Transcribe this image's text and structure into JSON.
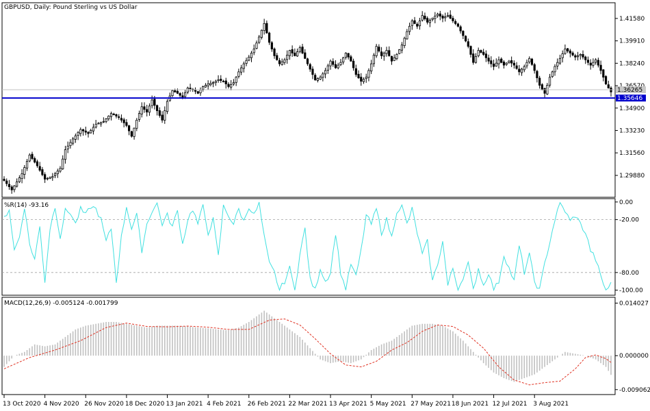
{
  "chart_data": {
    "type": "candlestick-with-indicators",
    "title": "GBPUSD, Daily:  Pound Sterling vs US Dollar",
    "colors": {
      "background": "#ffffff",
      "candle": "#000000",
      "hline": "#0000cc",
      "hline_label_bg": "#0000cc",
      "bid_line": "#c0c0c0",
      "wpr_line": "#40e0e0",
      "macd_hist": "#c0c0c0",
      "macd_signal": "#e03020"
    },
    "x_dates": [
      "13 Oct 2020",
      "4 Nov 2020",
      "26 Nov 2020",
      "18 Dec 2020",
      "13 Jan 2021",
      "4 Feb 2021",
      "26 Feb 2021",
      "22 Mar 2021",
      "13 Apr 2021",
      "5 May 2021",
      "27 May 2021",
      "18 Jun 2021",
      "12 Jul 2021",
      "3 Aug 2021"
    ],
    "main": {
      "ylim": [
        1.283,
        1.427
      ],
      "yticks": [
        "1.41580",
        "1.39910",
        "1.38240",
        "1.36570",
        "1.34900",
        "1.33230",
        "1.31560",
        "1.29880"
      ],
      "anchors": [
        [
          0,
          1.295
        ],
        [
          3,
          1.288
        ],
        [
          7,
          1.3
        ],
        [
          10,
          1.314
        ],
        [
          13,
          1.306
        ],
        [
          16,
          1.296
        ],
        [
          19,
          1.298
        ],
        [
          22,
          1.304
        ],
        [
          24,
          1.318
        ],
        [
          27,
          1.326
        ],
        [
          30,
          1.333
        ],
        [
          33,
          1.33
        ],
        [
          36,
          1.337
        ],
        [
          39,
          1.339
        ],
        [
          42,
          1.345
        ],
        [
          45,
          1.342
        ],
        [
          48,
          1.336
        ],
        [
          50,
          1.328
        ],
        [
          52,
          1.34
        ],
        [
          54,
          1.35
        ],
        [
          56,
          1.346
        ],
        [
          58,
          1.355
        ],
        [
          60,
          1.347
        ],
        [
          62,
          1.34
        ],
        [
          64,
          1.354
        ],
        [
          66,
          1.362
        ],
        [
          68,
          1.36
        ],
        [
          70,
          1.357
        ],
        [
          72,
          1.364
        ],
        [
          74,
          1.363
        ],
        [
          76,
          1.36
        ],
        [
          78,
          1.365
        ],
        [
          80,
          1.367
        ],
        [
          82,
          1.368
        ],
        [
          84,
          1.37
        ],
        [
          86,
          1.369
        ],
        [
          88,
          1.365
        ],
        [
          90,
          1.368
        ],
        [
          92,
          1.376
        ],
        [
          94,
          1.382
        ],
        [
          96,
          1.387
        ],
        [
          98,
          1.393
        ],
        [
          100,
          1.402
        ],
        [
          102,
          1.412
        ],
        [
          104,
          1.398
        ],
        [
          106,
          1.388
        ],
        [
          108,
          1.382
        ],
        [
          110,
          1.385
        ],
        [
          112,
          1.392
        ],
        [
          114,
          1.388
        ],
        [
          116,
          1.394
        ],
        [
          118,
          1.386
        ],
        [
          120,
          1.378
        ],
        [
          122,
          1.37
        ],
        [
          124,
          1.372
        ],
        [
          126,
          1.377
        ],
        [
          128,
          1.384
        ],
        [
          130,
          1.379
        ],
        [
          132,
          1.383
        ],
        [
          134,
          1.39
        ],
        [
          136,
          1.384
        ],
        [
          138,
          1.374
        ],
        [
          140,
          1.369
        ],
        [
          142,
          1.372
        ],
        [
          144,
          1.382
        ],
        [
          146,
          1.395
        ],
        [
          148,
          1.388
        ],
        [
          150,
          1.392
        ],
        [
          152,
          1.384
        ],
        [
          154,
          1.389
        ],
        [
          156,
          1.396
        ],
        [
          158,
          1.406
        ],
        [
          160,
          1.414
        ],
        [
          162,
          1.41
        ],
        [
          164,
          1.418
        ],
        [
          166,
          1.413
        ],
        [
          168,
          1.416
        ],
        [
          170,
          1.419
        ],
        [
          172,
          1.416
        ],
        [
          174,
          1.418
        ],
        [
          176,
          1.414
        ],
        [
          178,
          1.41
        ],
        [
          180,
          1.403
        ],
        [
          182,
          1.395
        ],
        [
          184,
          1.383
        ],
        [
          186,
          1.392
        ],
        [
          188,
          1.389
        ],
        [
          190,
          1.384
        ],
        [
          192,
          1.38
        ],
        [
          194,
          1.385
        ],
        [
          196,
          1.381
        ],
        [
          198,
          1.384
        ],
        [
          200,
          1.381
        ],
        [
          202,
          1.376
        ],
        [
          204,
          1.38
        ],
        [
          206,
          1.386
        ],
        [
          208,
          1.377
        ],
        [
          210,
          1.366
        ],
        [
          212,
          1.36
        ],
        [
          214,
          1.372
        ],
        [
          216,
          1.38
        ],
        [
          218,
          1.386
        ],
        [
          220,
          1.393
        ],
        [
          222,
          1.39
        ],
        [
          224,
          1.387
        ],
        [
          226,
          1.389
        ],
        [
          228,
          1.385
        ],
        [
          230,
          1.381
        ],
        [
          232,
          1.385
        ],
        [
          234,
          1.377
        ],
        [
          236,
          1.367
        ],
        [
          238,
          1.361
        ]
      ],
      "current_price": "1.36265",
      "hline": {
        "value": 1.35646,
        "label": "1.35646"
      }
    },
    "wpr": {
      "label": "%R(14) -93.16",
      "ylim": [
        -105,
        3
      ],
      "yticks": [
        "0.00",
        "-20.00",
        "-80.00",
        "-100.00"
      ],
      "levels": [
        -20,
        -80
      ],
      "anchors": [
        [
          0,
          -18
        ],
        [
          2,
          -8
        ],
        [
          4,
          -55
        ],
        [
          6,
          -40
        ],
        [
          8,
          -5
        ],
        [
          10,
          -48
        ],
        [
          12,
          -65
        ],
        [
          14,
          -28
        ],
        [
          16,
          -90
        ],
        [
          18,
          -30
        ],
        [
          20,
          -5
        ],
        [
          22,
          -40
        ],
        [
          24,
          -10
        ],
        [
          26,
          -12
        ],
        [
          28,
          -25
        ],
        [
          30,
          -8
        ],
        [
          32,
          -15
        ],
        [
          34,
          -5
        ],
        [
          36,
          -8
        ],
        [
          38,
          -20
        ],
        [
          40,
          -45
        ],
        [
          42,
          -30
        ],
        [
          44,
          -90
        ],
        [
          46,
          -40
        ],
        [
          48,
          -5
        ],
        [
          50,
          -30
        ],
        [
          52,
          -15
        ],
        [
          54,
          -55
        ],
        [
          56,
          -25
        ],
        [
          58,
          -10
        ],
        [
          60,
          -2
        ],
        [
          62,
          -25
        ],
        [
          64,
          -15
        ],
        [
          66,
          -28
        ],
        [
          68,
          -10
        ],
        [
          70,
          -48
        ],
        [
          72,
          -20
        ],
        [
          74,
          -8
        ],
        [
          76,
          -25
        ],
        [
          78,
          -5
        ],
        [
          80,
          -35
        ],
        [
          82,
          -20
        ],
        [
          84,
          -62
        ],
        [
          86,
          -5
        ],
        [
          88,
          -15
        ],
        [
          90,
          -25
        ],
        [
          92,
          -8
        ],
        [
          94,
          -22
        ],
        [
          96,
          -5
        ],
        [
          98,
          -15
        ],
        [
          100,
          -2
        ],
        [
          102,
          -40
        ],
        [
          104,
          -70
        ],
        [
          106,
          -80
        ],
        [
          108,
          -100
        ],
        [
          110,
          -90
        ],
        [
          112,
          -75
        ],
        [
          114,
          -100
        ],
        [
          116,
          -60
        ],
        [
          118,
          -30
        ],
        [
          120,
          -88
        ],
        [
          122,
          -100
        ],
        [
          124,
          -75
        ],
        [
          126,
          -90
        ],
        [
          128,
          -80
        ],
        [
          130,
          -35
        ],
        [
          132,
          -80
        ],
        [
          134,
          -100
        ],
        [
          136,
          -70
        ],
        [
          138,
          -85
        ],
        [
          140,
          -55
        ],
        [
          142,
          -15
        ],
        [
          144,
          -25
        ],
        [
          146,
          -8
        ],
        [
          148,
          -35
        ],
        [
          150,
          -20
        ],
        [
          152,
          -40
        ],
        [
          154,
          -10
        ],
        [
          156,
          -5
        ],
        [
          158,
          -25
        ],
        [
          160,
          -8
        ],
        [
          162,
          -35
        ],
        [
          164,
          -60
        ],
        [
          166,
          -45
        ],
        [
          168,
          -90
        ],
        [
          170,
          -70
        ],
        [
          172,
          -45
        ],
        [
          174,
          -95
        ],
        [
          176,
          -75
        ],
        [
          178,
          -100
        ],
        [
          180,
          -85
        ],
        [
          182,
          -70
        ],
        [
          184,
          -100
        ],
        [
          186,
          -75
        ],
        [
          188,
          -95
        ],
        [
          190,
          -80
        ],
        [
          192,
          -100
        ],
        [
          194,
          -90
        ],
        [
          196,
          -60
        ],
        [
          198,
          -75
        ],
        [
          200,
          -90
        ],
        [
          202,
          -50
        ],
        [
          204,
          -80
        ],
        [
          206,
          -60
        ],
        [
          208,
          -90
        ],
        [
          210,
          -100
        ],
        [
          212,
          -70
        ],
        [
          214,
          -45
        ],
        [
          216,
          -20
        ],
        [
          218,
          -2
        ],
        [
          220,
          -10
        ],
        [
          222,
          -22
        ],
        [
          224,
          -15
        ],
        [
          226,
          -25
        ],
        [
          228,
          -35
        ],
        [
          230,
          -55
        ],
        [
          232,
          -65
        ],
        [
          234,
          -85
        ],
        [
          236,
          -100
        ],
        [
          238,
          -93
        ]
      ]
    },
    "macd": {
      "label": "MACD(12,26,9) -0.005124 -0.001799",
      "ylim": [
        -0.0102,
        0.0154
      ],
      "yticks": [
        "0.014027",
        "0.000000",
        "-0.009062"
      ],
      "hist_anchors": [
        [
          0,
          -0.003
        ],
        [
          4,
          0
        ],
        [
          8,
          0.001
        ],
        [
          12,
          0.003
        ],
        [
          16,
          0.0025
        ],
        [
          20,
          0.003
        ],
        [
          24,
          0.005
        ],
        [
          28,
          0.007
        ],
        [
          32,
          0.008
        ],
        [
          36,
          0.0085
        ],
        [
          40,
          0.009
        ],
        [
          44,
          0.009
        ],
        [
          48,
          0.0085
        ],
        [
          52,
          0.008
        ],
        [
          56,
          0.0075
        ],
        [
          60,
          0.008
        ],
        [
          64,
          0.008
        ],
        [
          68,
          0.008
        ],
        [
          72,
          0.0078
        ],
        [
          76,
          0.0075
        ],
        [
          80,
          0.0073
        ],
        [
          84,
          0.007
        ],
        [
          88,
          0.0068
        ],
        [
          92,
          0.0075
        ],
        [
          96,
          0.009
        ],
        [
          100,
          0.011
        ],
        [
          102,
          0.012
        ],
        [
          104,
          0.011
        ],
        [
          108,
          0.009
        ],
        [
          112,
          0.007
        ],
        [
          116,
          0.005
        ],
        [
          120,
          0.002
        ],
        [
          124,
          -0.001
        ],
        [
          128,
          -0.002
        ],
        [
          132,
          -0.0015
        ],
        [
          136,
          -0.002
        ],
        [
          140,
          -0.001
        ],
        [
          144,
          0.0015
        ],
        [
          148,
          0.003
        ],
        [
          152,
          0.004
        ],
        [
          156,
          0.006
        ],
        [
          160,
          0.008
        ],
        [
          164,
          0.0085
        ],
        [
          168,
          0.0085
        ],
        [
          172,
          0.008
        ],
        [
          176,
          0.0065
        ],
        [
          180,
          0.004
        ],
        [
          184,
          0.001
        ],
        [
          188,
          -0.002
        ],
        [
          192,
          -0.0045
        ],
        [
          196,
          -0.006
        ],
        [
          200,
          -0.007
        ],
        [
          204,
          -0.006
        ],
        [
          208,
          -0.005
        ],
        [
          212,
          -0.003
        ],
        [
          216,
          -0.001
        ],
        [
          220,
          0.001
        ],
        [
          224,
          0.0005
        ],
        [
          228,
          0
        ],
        [
          232,
          -0.001
        ],
        [
          236,
          -0.003
        ],
        [
          238,
          -0.005124
        ]
      ],
      "signal_anchors": [
        [
          0,
          -0.0035
        ],
        [
          10,
          -0.0005
        ],
        [
          20,
          0.0015
        ],
        [
          30,
          0.004
        ],
        [
          40,
          0.0075
        ],
        [
          48,
          0.0087
        ],
        [
          56,
          0.0078
        ],
        [
          64,
          0.0077
        ],
        [
          72,
          0.0079
        ],
        [
          80,
          0.0076
        ],
        [
          88,
          0.007
        ],
        [
          96,
          0.007
        ],
        [
          104,
          0.0095
        ],
        [
          110,
          0.0098
        ],
        [
          116,
          0.0082
        ],
        [
          122,
          0.0045
        ],
        [
          128,
          0.0005
        ],
        [
          134,
          -0.0025
        ],
        [
          140,
          -0.003
        ],
        [
          146,
          -0.0015
        ],
        [
          152,
          0.0015
        ],
        [
          158,
          0.0035
        ],
        [
          164,
          0.0065
        ],
        [
          170,
          0.0082
        ],
        [
          176,
          0.0078
        ],
        [
          182,
          0.0055
        ],
        [
          188,
          0.002
        ],
        [
          194,
          -0.003
        ],
        [
          200,
          -0.0065
        ],
        [
          206,
          -0.0078
        ],
        [
          212,
          -0.0072
        ],
        [
          218,
          -0.0068
        ],
        [
          224,
          -0.0035
        ],
        [
          228,
          -0.0005
        ],
        [
          232,
          0.0002
        ],
        [
          236,
          -0.0008
        ],
        [
          238,
          -0.001799
        ]
      ]
    }
  }
}
